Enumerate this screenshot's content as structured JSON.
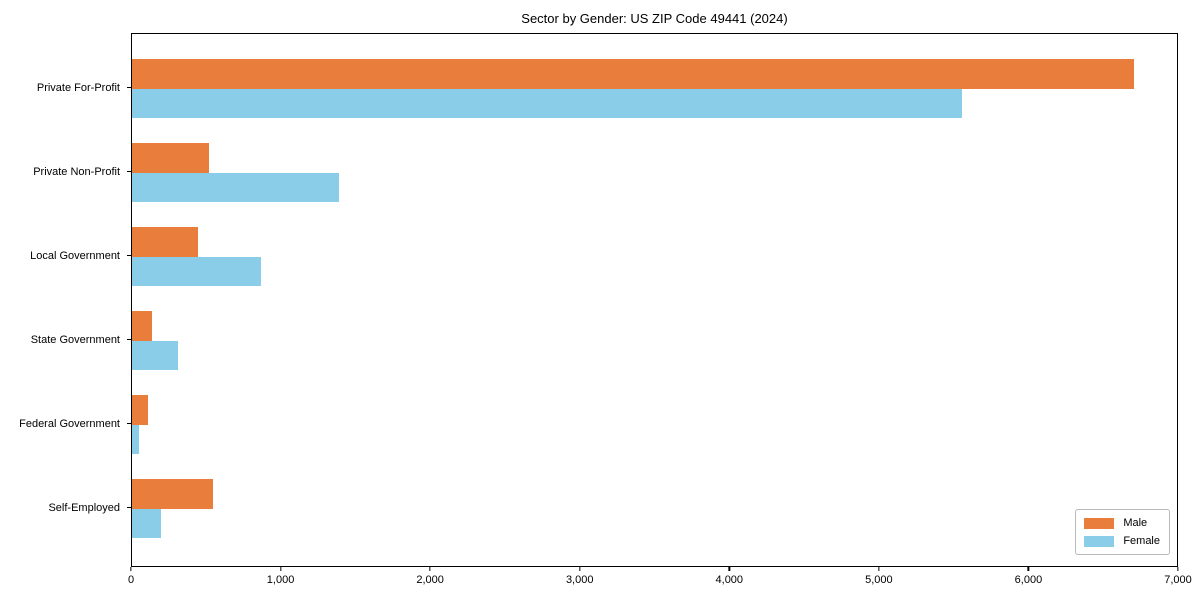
{
  "title": "Sector by Gender: US ZIP Code 49441 (2024)",
  "chart_data": {
    "type": "bar",
    "orientation": "horizontal",
    "title": "Sector by Gender: US ZIP Code 49441 (2024)",
    "categories": [
      "Private For-Profit",
      "Private Non-Profit",
      "Local Government",
      "State Government",
      "Federal Government",
      "Self-Employed"
    ],
    "series": [
      {
        "name": "Male",
        "color": "#e87d3c",
        "values": [
          6700,
          515,
          440,
          135,
          105,
          540
        ]
      },
      {
        "name": "Female",
        "color": "#89cde8",
        "values": [
          5550,
          1385,
          860,
          310,
          45,
          195
        ]
      }
    ],
    "xlabel": "",
    "ylabel": "",
    "xlim": [
      0,
      7000
    ],
    "xticks": [
      0,
      1000,
      2000,
      3000,
      4000,
      5000,
      6000,
      7000
    ],
    "xtick_labels": [
      "0",
      "1,000",
      "2,000",
      "3,000",
      "4,000",
      "5,000",
      "6,000",
      "7,000"
    ],
    "grid": false,
    "legend_position": "lower right",
    "axis_color": "#000000"
  }
}
